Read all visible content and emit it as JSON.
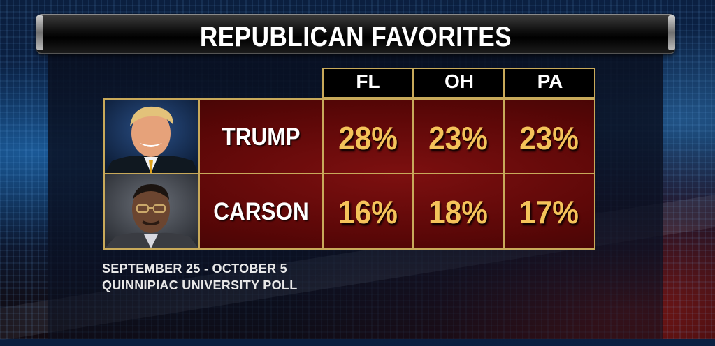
{
  "title": "REPUBLICAN FAVORITES",
  "chart_data": {
    "type": "table",
    "title": "REPUBLICAN FAVORITES",
    "columns": [
      "FL",
      "OH",
      "PA"
    ],
    "rows": [
      {
        "name": "TRUMP",
        "values": [
          "28%",
          "23%",
          "23%"
        ]
      },
      {
        "name": "CARSON",
        "values": [
          "16%",
          "18%",
          "17%"
        ]
      }
    ]
  },
  "footnote": {
    "dates": "SEPTEMBER 25 - OCTOBER 5",
    "source": "QUINNIPIAC UNIVERSITY POLL"
  },
  "colors": {
    "gold": "#f4c35a",
    "border": "#c8a95a",
    "cell_bg": "#6a0909"
  }
}
